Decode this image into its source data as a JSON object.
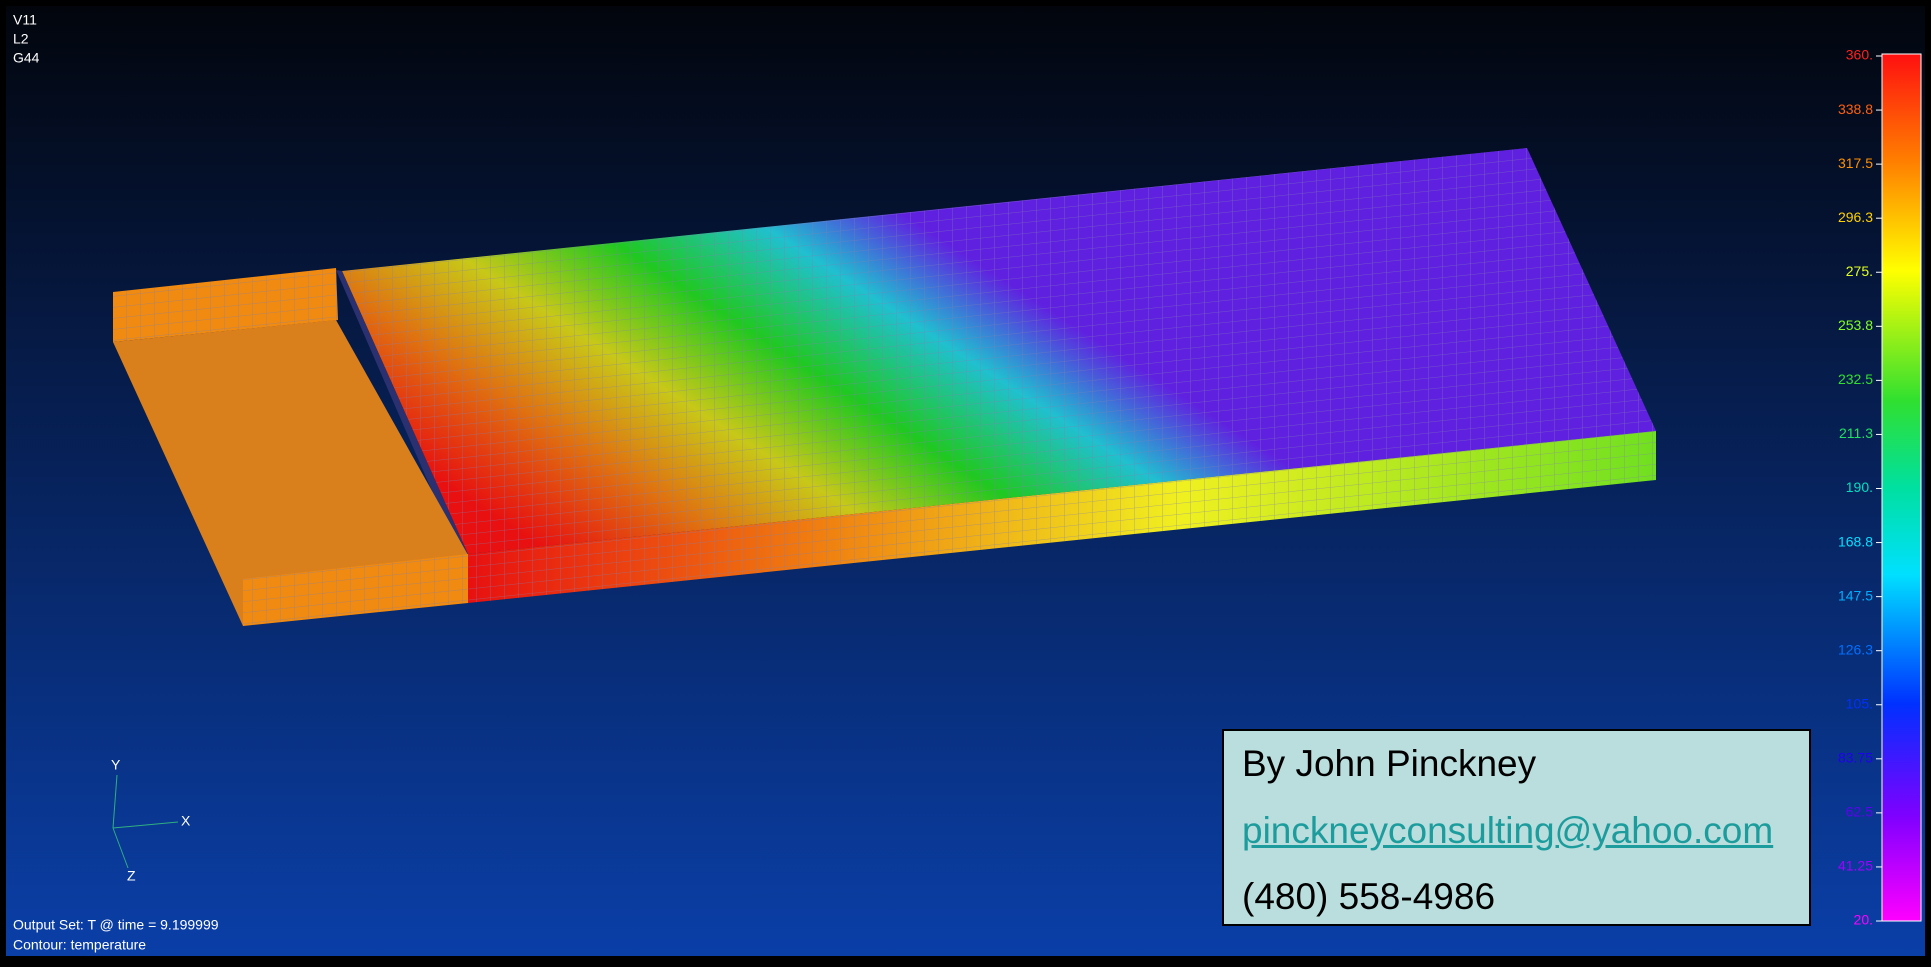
{
  "viewport": {
    "labels": [
      "V11",
      "L2",
      "G44"
    ]
  },
  "contour_legend": {
    "labels": [
      "360.",
      "338.8",
      "317.5",
      "296.3",
      "275.",
      "253.8",
      "232.5",
      "211.3",
      "190.",
      "168.8",
      "147.5",
      "126.3",
      "105.",
      "83.75",
      "62.5",
      "41.25",
      "20."
    ]
  },
  "axis_triad": {
    "y": "Y",
    "x": "X",
    "z": "Z"
  },
  "footer": {
    "output_set": "Output Set: T @ time = 9.199999",
    "contour": "Contour: temperature"
  },
  "contact": {
    "author": "By John Pinckney",
    "email": "pinckneyconsulting@yahoo.com",
    "phone": "(480) 558-4986"
  }
}
